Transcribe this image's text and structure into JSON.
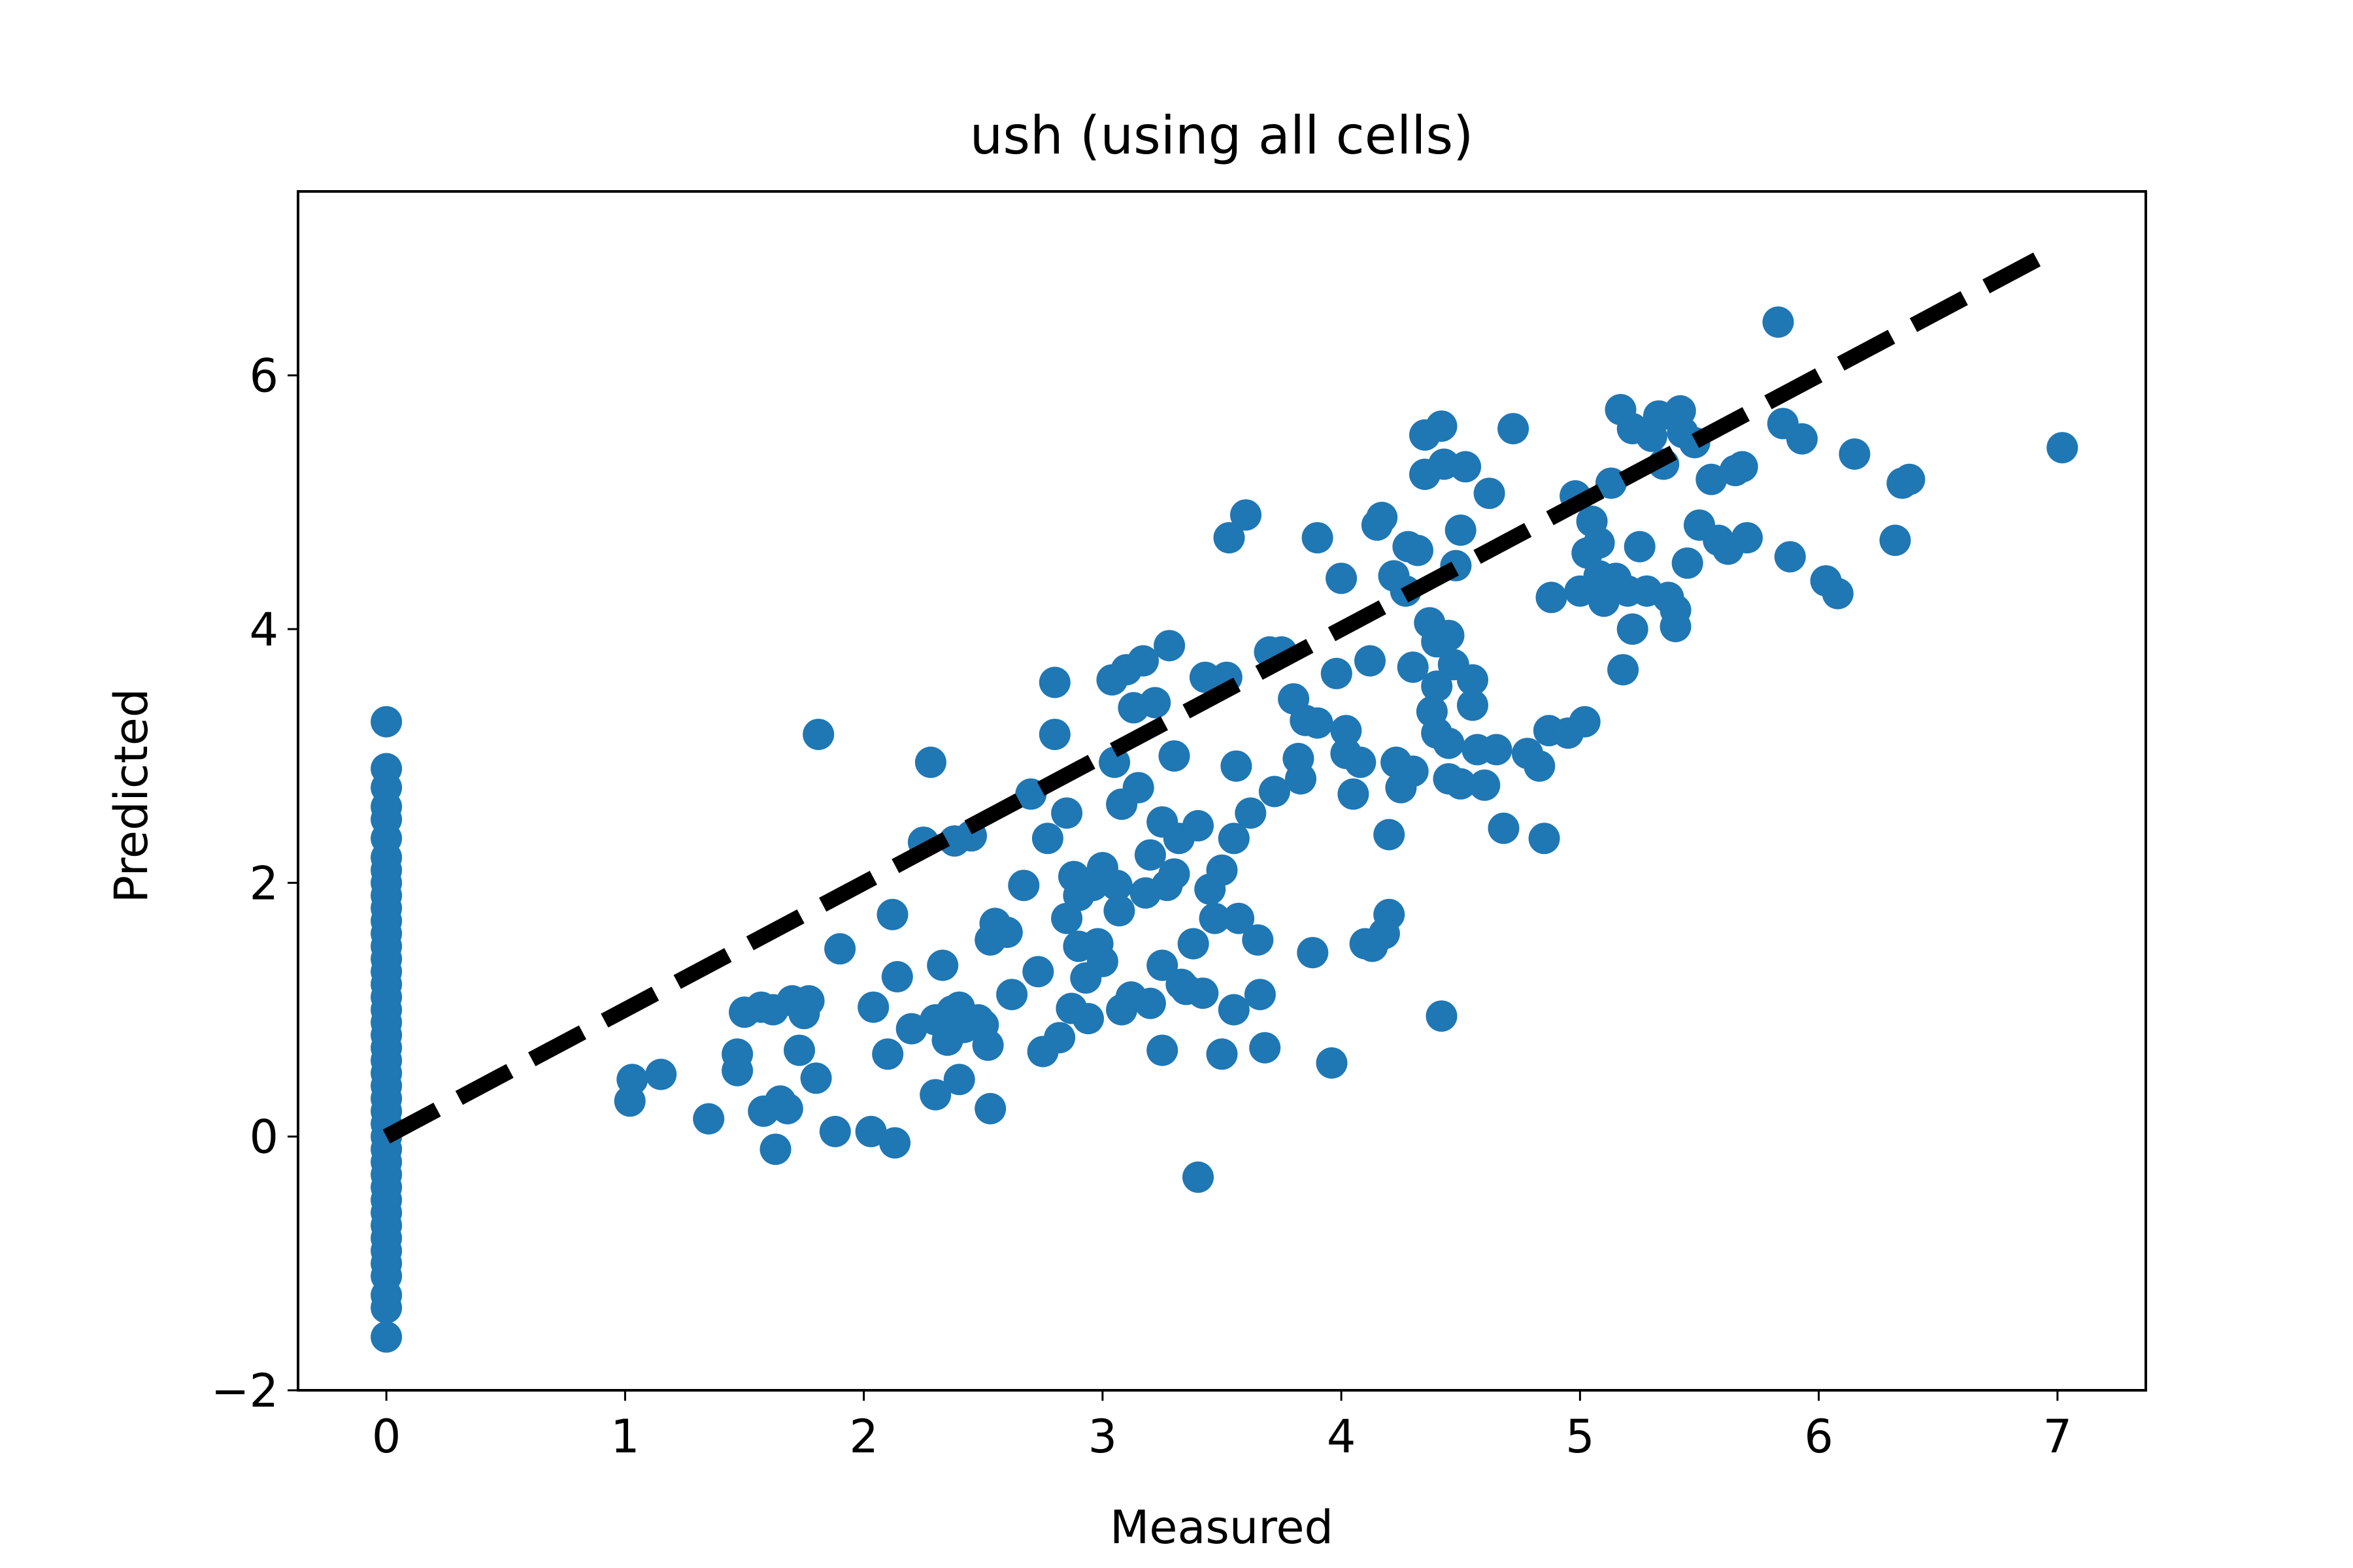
{
  "chart_data": {
    "type": "scatter",
    "title": "ush (using all cells)",
    "xlabel": "Measured",
    "ylabel": "Predicted",
    "xlim": [
      -0.37,
      7.37
    ],
    "ylim": [
      -2.0,
      7.45
    ],
    "xticks": [
      0,
      1,
      2,
      3,
      4,
      5,
      6,
      7
    ],
    "yticks": [
      -2,
      0,
      2,
      4,
      6
    ],
    "xtick_labels": [
      "0",
      "1",
      "2",
      "3",
      "4",
      "5",
      "6",
      "7"
    ],
    "ytick_labels": [
      "−2",
      "0",
      "2",
      "4",
      "6"
    ],
    "grid": false,
    "point_color": "#1f77b4",
    "reference_line": {
      "x": [
        0,
        7
      ],
      "y": [
        0,
        7
      ],
      "color": "#000000",
      "style": "dashed"
    },
    "series": [
      {
        "points": [
          [
            0,
            3.27
          ],
          [
            0,
            2.9
          ],
          [
            0,
            2.75
          ],
          [
            0,
            2.6
          ],
          [
            0,
            2.5
          ],
          [
            0,
            2.35
          ],
          [
            0,
            2.2
          ],
          [
            0,
            2.1
          ],
          [
            0,
            2.0
          ],
          [
            0,
            1.9
          ],
          [
            0,
            1.8
          ],
          [
            0,
            1.7
          ],
          [
            0,
            1.6
          ],
          [
            0,
            1.5
          ],
          [
            0,
            1.4
          ],
          [
            0,
            1.3
          ],
          [
            0,
            1.2
          ],
          [
            0,
            1.1
          ],
          [
            0,
            1.0
          ],
          [
            0,
            0.9
          ],
          [
            0,
            0.8
          ],
          [
            0,
            0.7
          ],
          [
            0,
            0.6
          ],
          [
            0,
            0.5
          ],
          [
            0,
            0.4
          ],
          [
            0,
            0.3
          ],
          [
            0,
            0.2
          ],
          [
            0,
            0.1
          ],
          [
            0,
            0.0
          ],
          [
            0,
            -0.1
          ],
          [
            0,
            -0.2
          ],
          [
            0,
            -0.3
          ],
          [
            0,
            -0.4
          ],
          [
            0,
            -0.5
          ],
          [
            0,
            -0.6
          ],
          [
            0,
            -0.7
          ],
          [
            0,
            -0.8
          ],
          [
            0,
            -0.9
          ],
          [
            0,
            -1.0
          ],
          [
            0,
            -1.1
          ],
          [
            0,
            -1.25
          ],
          [
            0,
            -1.35
          ],
          [
            0,
            -1.58
          ],
          [
            1.02,
            0.28
          ],
          [
            1.03,
            0.45
          ],
          [
            1.15,
            0.49
          ],
          [
            1.35,
            0.14
          ],
          [
            1.47,
            0.65
          ],
          [
            1.47,
            0.52
          ],
          [
            1.5,
            0.98
          ],
          [
            1.57,
            1.02
          ],
          [
            1.58,
            0.2
          ],
          [
            1.62,
            1.0
          ],
          [
            1.63,
            -0.1
          ],
          [
            1.65,
            0.28
          ],
          [
            1.68,
            0.22
          ],
          [
            1.7,
            1.07
          ],
          [
            1.73,
            0.68
          ],
          [
            1.75,
            0.97
          ],
          [
            1.77,
            1.07
          ],
          [
            1.8,
            0.46
          ],
          [
            1.81,
            3.17
          ],
          [
            1.88,
            0.04
          ],
          [
            1.9,
            1.48
          ],
          [
            2.03,
            0.04
          ],
          [
            2.04,
            1.02
          ],
          [
            2.1,
            0.65
          ],
          [
            2.12,
            1.75
          ],
          [
            2.13,
            -0.05
          ],
          [
            2.14,
            1.26
          ],
          [
            2.2,
            0.85
          ],
          [
            2.25,
            2.32
          ],
          [
            2.28,
            2.95
          ],
          [
            2.3,
            0.33
          ],
          [
            2.3,
            0.92
          ],
          [
            2.33,
            1.35
          ],
          [
            2.35,
            0.76
          ],
          [
            2.37,
            0.99
          ],
          [
            2.38,
            2.33
          ],
          [
            2.4,
            0.45
          ],
          [
            2.4,
            1.02
          ],
          [
            2.42,
            0.86
          ],
          [
            2.45,
            2.37
          ],
          [
            2.48,
            0.92
          ],
          [
            2.5,
            0.88
          ],
          [
            2.52,
            0.72
          ],
          [
            2.53,
            1.55
          ],
          [
            2.53,
            0.22
          ],
          [
            2.55,
            1.68
          ],
          [
            2.6,
            1.61
          ],
          [
            2.62,
            1.12
          ],
          [
            2.67,
            1.98
          ],
          [
            2.7,
            2.7
          ],
          [
            2.73,
            1.3
          ],
          [
            2.75,
            0.67
          ],
          [
            2.77,
            2.35
          ],
          [
            2.8,
            3.58
          ],
          [
            2.8,
            3.17
          ],
          [
            2.82,
            0.78
          ],
          [
            2.85,
            1.72
          ],
          [
            2.85,
            2.55
          ],
          [
            2.87,
            1.01
          ],
          [
            2.88,
            2.05
          ],
          [
            2.9,
            1.9
          ],
          [
            2.9,
            1.5
          ],
          [
            2.93,
            1.25
          ],
          [
            2.94,
            0.93
          ],
          [
            2.96,
            1.98
          ],
          [
            2.98,
            1.52
          ],
          [
            3.0,
            1.38
          ],
          [
            3.0,
            2.12
          ],
          [
            3.04,
            3.6
          ],
          [
            3.05,
            2.95
          ],
          [
            3.06,
            1.98
          ],
          [
            3.07,
            1.78
          ],
          [
            3.08,
            1.0
          ],
          [
            3.08,
            2.62
          ],
          [
            3.1,
            3.68
          ],
          [
            3.12,
            1.1
          ],
          [
            3.13,
            3.38
          ],
          [
            3.15,
            2.75
          ],
          [
            3.17,
            3.75
          ],
          [
            3.18,
            1.92
          ],
          [
            3.2,
            2.22
          ],
          [
            3.2,
            1.05
          ],
          [
            3.22,
            3.42
          ],
          [
            3.25,
            2.48
          ],
          [
            3.25,
            1.35
          ],
          [
            3.25,
            0.68
          ],
          [
            3.27,
            1.98
          ],
          [
            3.28,
            3.87
          ],
          [
            3.3,
            3.0
          ],
          [
            3.3,
            2.07
          ],
          [
            3.32,
            2.35
          ],
          [
            3.33,
            1.2
          ],
          [
            3.35,
            1.16
          ],
          [
            3.38,
            1.52
          ],
          [
            3.4,
            2.45
          ],
          [
            3.4,
            -0.32
          ],
          [
            3.42,
            1.13
          ],
          [
            3.43,
            3.62
          ],
          [
            3.45,
            1.95
          ],
          [
            3.47,
            1.72
          ],
          [
            3.5,
            2.1
          ],
          [
            3.5,
            0.65
          ],
          [
            3.52,
            3.62
          ],
          [
            3.53,
            4.72
          ],
          [
            3.55,
            2.35
          ],
          [
            3.55,
            1.0
          ],
          [
            3.56,
            2.92
          ],
          [
            3.57,
            1.72
          ],
          [
            3.6,
            4.9
          ],
          [
            3.62,
            2.55
          ],
          [
            3.65,
            1.55
          ],
          [
            3.66,
            1.12
          ],
          [
            3.68,
            0.7
          ],
          [
            3.7,
            3.82
          ],
          [
            3.72,
            2.72
          ],
          [
            3.75,
            3.82
          ],
          [
            3.8,
            3.45
          ],
          [
            3.82,
            2.98
          ],
          [
            3.83,
            2.82
          ],
          [
            3.85,
            3.28
          ],
          [
            3.88,
            1.45
          ],
          [
            3.9,
            3.26
          ],
          [
            3.9,
            4.72
          ],
          [
            3.96,
            0.58
          ],
          [
            3.98,
            3.65
          ],
          [
            4.0,
            4.4
          ],
          [
            4.02,
            3.2
          ],
          [
            4.02,
            3.02
          ],
          [
            4.05,
            2.7
          ],
          [
            4.08,
            2.95
          ],
          [
            4.1,
            1.52
          ],
          [
            4.12,
            3.75
          ],
          [
            4.13,
            1.5
          ],
          [
            4.15,
            4.82
          ],
          [
            4.17,
            4.88
          ],
          [
            4.18,
            1.6
          ],
          [
            4.2,
            2.38
          ],
          [
            4.2,
            1.75
          ],
          [
            4.22,
            4.42
          ],
          [
            4.23,
            2.95
          ],
          [
            4.25,
            2.75
          ],
          [
            4.27,
            4.3
          ],
          [
            4.28,
            4.65
          ],
          [
            4.3,
            3.7
          ],
          [
            4.3,
            2.88
          ],
          [
            4.32,
            4.62
          ],
          [
            4.35,
            5.53
          ],
          [
            4.35,
            5.22
          ],
          [
            4.37,
            4.05
          ],
          [
            4.38,
            3.35
          ],
          [
            4.4,
            3.9
          ],
          [
            4.4,
            3.55
          ],
          [
            4.4,
            3.18
          ],
          [
            4.42,
            5.6
          ],
          [
            4.42,
            0.95
          ],
          [
            4.43,
            5.3
          ],
          [
            4.45,
            3.95
          ],
          [
            4.45,
            3.1
          ],
          [
            4.45,
            2.82
          ],
          [
            4.47,
            3.72
          ],
          [
            4.48,
            4.5
          ],
          [
            4.5,
            4.78
          ],
          [
            4.5,
            2.78
          ],
          [
            4.52,
            5.28
          ],
          [
            4.55,
            3.6
          ],
          [
            4.55,
            3.4
          ],
          [
            4.57,
            3.05
          ],
          [
            4.6,
            2.77
          ],
          [
            4.62,
            5.07
          ],
          [
            4.65,
            3.05
          ],
          [
            4.68,
            2.43
          ],
          [
            4.72,
            5.58
          ],
          [
            4.78,
            3.02
          ],
          [
            4.83,
            2.92
          ],
          [
            4.85,
            2.35
          ],
          [
            4.87,
            3.2
          ],
          [
            4.88,
            4.25
          ],
          [
            4.95,
            3.18
          ],
          [
            4.98,
            5.05
          ],
          [
            5.0,
            4.3
          ],
          [
            5.02,
            3.27
          ],
          [
            5.03,
            4.6
          ],
          [
            5.05,
            4.85
          ],
          [
            5.08,
            4.68
          ],
          [
            5.08,
            4.42
          ],
          [
            5.1,
            4.22
          ],
          [
            5.13,
            5.15
          ],
          [
            5.15,
            4.4
          ],
          [
            5.17,
            5.73
          ],
          [
            5.18,
            3.68
          ],
          [
            5.2,
            4.3
          ],
          [
            5.22,
            4.0
          ],
          [
            5.22,
            5.58
          ],
          [
            5.25,
            4.65
          ],
          [
            5.28,
            4.3
          ],
          [
            5.3,
            5.52
          ],
          [
            5.33,
            5.68
          ],
          [
            5.35,
            5.3
          ],
          [
            5.37,
            4.25
          ],
          [
            5.4,
            4.02
          ],
          [
            5.4,
            4.15
          ],
          [
            5.42,
            5.72
          ],
          [
            5.43,
            5.55
          ],
          [
            5.45,
            4.52
          ],
          [
            5.48,
            5.47
          ],
          [
            5.5,
            4.82
          ],
          [
            5.55,
            5.18
          ],
          [
            5.58,
            4.7
          ],
          [
            5.62,
            4.63
          ],
          [
            5.65,
            5.25
          ],
          [
            5.68,
            5.28
          ],
          [
            5.7,
            4.72
          ],
          [
            5.83,
            6.42
          ],
          [
            5.85,
            5.62
          ],
          [
            5.88,
            4.57
          ],
          [
            5.93,
            5.5
          ],
          [
            6.03,
            4.38
          ],
          [
            6.08,
            4.28
          ],
          [
            6.15,
            5.38
          ],
          [
            6.32,
            4.7
          ],
          [
            6.35,
            5.15
          ],
          [
            6.38,
            5.18
          ],
          [
            7.02,
            5.43
          ]
        ]
      }
    ]
  }
}
